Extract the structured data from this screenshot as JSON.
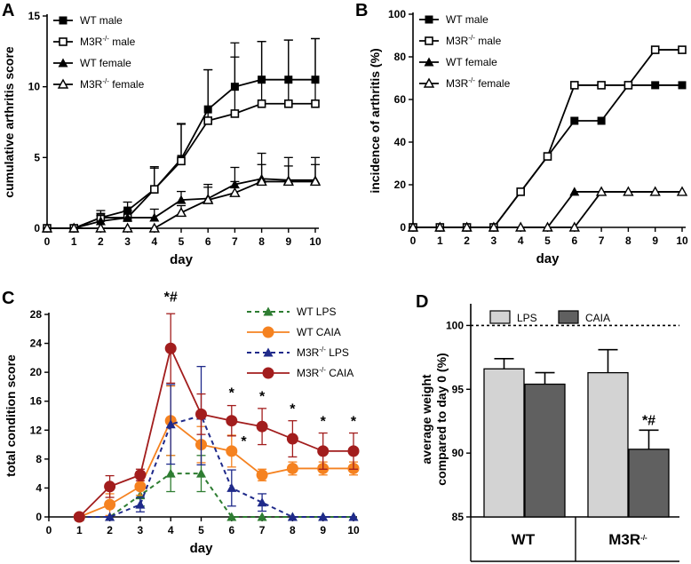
{
  "chart_data": [
    {
      "panel": "A",
      "type": "line",
      "xlabel": "day",
      "ylabel": "cumulative arthritis score",
      "x": [
        0,
        1,
        2,
        3,
        4,
        5,
        6,
        7,
        8,
        9,
        10
      ],
      "xticks": [
        "0",
        "1",
        "2",
        "3",
        "4",
        "5",
        "6",
        "7",
        "8",
        "9",
        "10"
      ],
      "ylim": [
        0,
        15
      ],
      "yticks": [
        "0",
        "5",
        "10",
        "15"
      ],
      "series": [
        {
          "name": "WT male",
          "sup": "",
          "marker": "filled-square",
          "values": [
            0,
            0,
            0.75,
            1.25,
            2.75,
            4.9,
            8.4,
            10,
            10.5,
            10.5,
            10.5
          ],
          "err": [
            0,
            0,
            0.5,
            0.6,
            1.5,
            2.5,
            2.8,
            3.1,
            2.7,
            2.8,
            2.9
          ]
        },
        {
          "name": "M3R",
          "sup": "-/-",
          "suffix": " male",
          "marker": "open-square",
          "values": [
            0,
            0,
            0.75,
            0.75,
            2.75,
            4.75,
            7.6,
            8.1,
            8.8,
            8.8,
            8.8
          ],
          "err": [
            0,
            0,
            0.3,
            0.5,
            1.6,
            2.6,
            3.6,
            4.0,
            4.4,
            4.5,
            4.6
          ]
        },
        {
          "name": "WT female",
          "sup": "",
          "marker": "filled-triangle",
          "values": [
            0,
            0,
            0.5,
            0.75,
            0.75,
            2,
            2.1,
            3.1,
            3.5,
            3.4,
            3.4
          ],
          "err": [
            0,
            0,
            0.4,
            0.5,
            0.6,
            0.6,
            1.0,
            1.2,
            1.8,
            1.6,
            1.6
          ]
        },
        {
          "name": "M3R",
          "sup": "-/-",
          "suffix": " female",
          "marker": "open-triangle",
          "values": [
            0,
            0,
            0,
            0,
            0,
            1.1,
            2.0,
            2.5,
            3.3,
            3.3,
            3.3
          ],
          "err": [
            0,
            0,
            0,
            0,
            0,
            0.5,
            0.9,
            0.8,
            1.2,
            1.1,
            1.2
          ]
        }
      ]
    },
    {
      "panel": "B",
      "type": "line",
      "xlabel": "day",
      "ylabel": "incidence of arthritis (%)",
      "x": [
        0,
        1,
        2,
        3,
        4,
        5,
        6,
        7,
        8,
        9,
        10
      ],
      "xticks": [
        "0",
        "1",
        "2",
        "3",
        "4",
        "5",
        "6",
        "7",
        "8",
        "9",
        "10"
      ],
      "ylim": [
        0,
        100
      ],
      "yticks": [
        "0",
        "20",
        "40",
        "60",
        "80",
        "100"
      ],
      "series": [
        {
          "name": "WT male",
          "sup": "",
          "marker": "filled-square",
          "values": [
            0,
            0,
            0,
            0,
            16.7,
            33.3,
            50,
            50,
            66.7,
            66.7,
            66.7
          ]
        },
        {
          "name": "M3R",
          "sup": "-/-",
          "suffix": " male",
          "marker": "open-square",
          "values": [
            0,
            0,
            0,
            0,
            16.7,
            33.3,
            66.7,
            66.7,
            66.7,
            83.3,
            83.3
          ]
        },
        {
          "name": "WT female",
          "sup": "",
          "marker": "filled-triangle",
          "values": [
            0,
            0,
            0,
            0,
            0,
            0,
            16.7,
            16.7,
            16.7,
            16.7,
            16.7
          ]
        },
        {
          "name": "M3R",
          "sup": "-/-",
          "suffix": " female",
          "marker": "open-triangle",
          "values": [
            0,
            0,
            0,
            0,
            0,
            0,
            0,
            16.7,
            16.7,
            16.7,
            16.7
          ]
        }
      ]
    },
    {
      "panel": "C",
      "type": "line",
      "xlabel": "day",
      "ylabel": "total condition score",
      "x": [
        1,
        2,
        3,
        4,
        5,
        6,
        7,
        8,
        9,
        10
      ],
      "xticks": [
        "0",
        "1",
        "2",
        "3",
        "4",
        "5",
        "6",
        "7",
        "8",
        "9",
        "10"
      ],
      "ylim": [
        0,
        28
      ],
      "yticks": [
        "0",
        "4",
        "8",
        "12",
        "16",
        "20",
        "24",
        "28"
      ],
      "series": [
        {
          "name": "WT  LPS",
          "sup": "",
          "color": "#2e7d32",
          "dashed": true,
          "marker": "triangle",
          "values": [
            0,
            0,
            3,
            6,
            6,
            0,
            0,
            0,
            0,
            0
          ],
          "err": [
            0,
            0,
            1.5,
            2.5,
            2.5,
            0,
            0,
            0,
            0,
            0
          ]
        },
        {
          "name": "WT CAIA",
          "sup": "",
          "color": "#f58220",
          "dashed": false,
          "marker": "circle",
          "values": [
            0,
            1.7,
            4.2,
            13.3,
            10,
            9.1,
            5.8,
            6.7,
            6.7,
            6.7
          ],
          "err": [
            0,
            1.5,
            1.2,
            4.8,
            2.5,
            2.2,
            0.8,
            0.9,
            0.9,
            0.9
          ]
        },
        {
          "name": "M3R",
          "sup": "-/-",
          "suffix": " LPS",
          "color": "#1f2a8a",
          "dashed": true,
          "marker": "triangle",
          "values": [
            0,
            0,
            1.7,
            12.8,
            14,
            4,
            2,
            0,
            0,
            0
          ],
          "err": [
            0,
            0,
            1.0,
            5.5,
            6.8,
            2.5,
            1.2,
            0,
            0,
            0
          ]
        },
        {
          "name": "M3R",
          "sup": "-/-",
          "suffix": " CAIA",
          "color": "#a21d1d",
          "dashed": false,
          "marker": "circle",
          "values": [
            0,
            4.2,
            5.8,
            23.3,
            14.2,
            13.3,
            12.5,
            10.8,
            9.1,
            9.1
          ],
          "err": [
            0,
            1.5,
            0.8,
            4.8,
            2.8,
            2.1,
            2.5,
            2.5,
            2.5,
            2.5
          ]
        }
      ],
      "annotations": [
        {
          "x": 4,
          "y": 29.8,
          "text": "*#"
        },
        {
          "x": 6,
          "y": 16.5,
          "text": "*"
        },
        {
          "x": 6.4,
          "y": 9.8,
          "text": "*"
        },
        {
          "x": 7,
          "y": 16.0,
          "text": "*"
        },
        {
          "x": 8,
          "y": 14.3,
          "text": "*"
        },
        {
          "x": 9,
          "y": 12.6,
          "text": "*"
        },
        {
          "x": 10,
          "y": 12.6,
          "text": "*"
        }
      ]
    },
    {
      "panel": "D",
      "type": "bar",
      "ylabel_line1": "average weight",
      "ylabel_line2": "compared to day 0 (%)",
      "ylim": [
        85,
        101.7
      ],
      "yticks": [
        "85",
        "90",
        "95",
        "100"
      ],
      "reference_line": 100,
      "categories": [
        "WT",
        "M3R"
      ],
      "category_sup": [
        "",
        "-/-"
      ],
      "series": [
        {
          "name": "LPS",
          "color": "#d3d3d3",
          "values": [
            96.6,
            96.3
          ],
          "err": [
            0.8,
            1.8
          ]
        },
        {
          "name": "CAIA",
          "color": "#606060",
          "values": [
            95.4,
            90.3
          ],
          "err": [
            0.9,
            1.5
          ]
        }
      ],
      "annotations": [
        {
          "category": 1,
          "series": 1,
          "text": "*#"
        }
      ]
    }
  ]
}
